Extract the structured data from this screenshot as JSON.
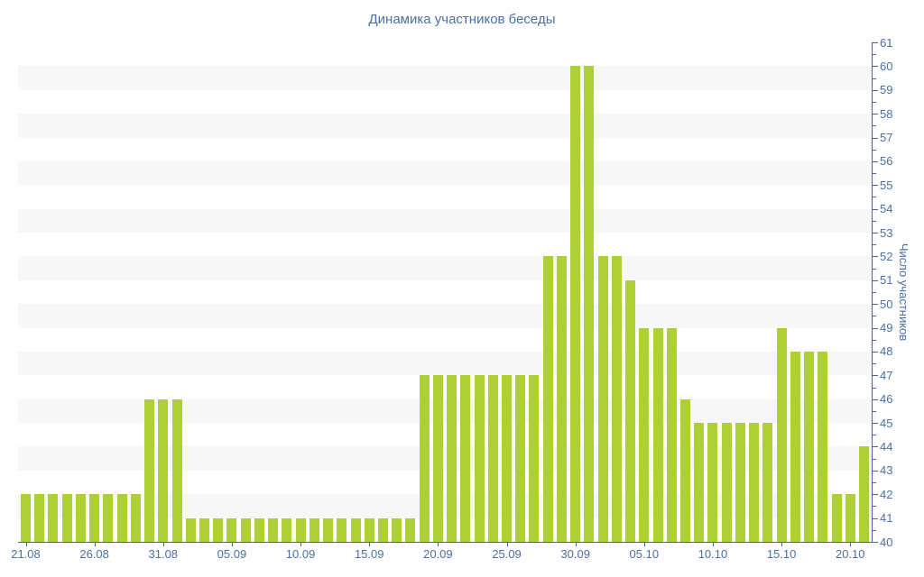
{
  "chart_data": {
    "type": "bar",
    "title": "Динамика участников беседы",
    "xlabel": "",
    "ylabel": "Число участников",
    "ylim": [
      40,
      61
    ],
    "y_major_step": 1,
    "y_minor_step": 0.5,
    "grid": "alternating horizontal stripes",
    "legend": "none",
    "x_tick_labels": [
      "21.08",
      "26.08",
      "31.08",
      "05.09",
      "10.09",
      "15.09",
      "20.09",
      "25.09",
      "30.09",
      "05.10",
      "10.10",
      "15.10",
      "20.10"
    ],
    "x_tick_every": 5,
    "x": [
      "21.08",
      "22.08",
      "23.08",
      "24.08",
      "25.08",
      "26.08",
      "27.08",
      "28.08",
      "29.08",
      "30.08",
      "31.08",
      "01.09",
      "02.09",
      "03.09",
      "04.09",
      "05.09",
      "06.09",
      "07.09",
      "08.09",
      "09.09",
      "10.09",
      "11.09",
      "12.09",
      "13.09",
      "14.09",
      "15.09",
      "16.09",
      "17.09",
      "18.09",
      "19.09",
      "20.09",
      "21.09",
      "22.09",
      "23.09",
      "24.09",
      "25.09",
      "26.09",
      "27.09",
      "28.09",
      "29.09",
      "30.09",
      "01.10",
      "02.10",
      "03.10",
      "04.10",
      "05.10",
      "06.10",
      "07.10",
      "08.10",
      "09.10",
      "10.10",
      "11.10",
      "12.10",
      "13.10",
      "14.10",
      "15.10",
      "16.10",
      "17.10",
      "18.10",
      "19.10",
      "20.10",
      "21.10"
    ],
    "values": [
      42,
      42,
      42,
      42,
      42,
      42,
      42,
      42,
      42,
      46,
      46,
      46,
      41,
      41,
      41,
      41,
      41,
      41,
      41,
      41,
      41,
      41,
      41,
      41,
      41,
      41,
      41,
      41,
      41,
      47,
      47,
      47,
      47,
      47,
      47,
      47,
      47,
      47,
      52,
      52,
      60,
      60,
      52,
      52,
      51,
      49,
      49,
      49,
      46,
      45,
      45,
      45,
      45,
      45,
      45,
      49,
      48,
      48,
      48,
      42,
      42,
      44
    ],
    "colors": {
      "bar": "#aed035",
      "stripe_gray": "#f7f7f7",
      "stripe_white": "#ffffff",
      "axis": "#47639a",
      "text": "#4b6fa6",
      "background": "#ffffff"
    }
  }
}
